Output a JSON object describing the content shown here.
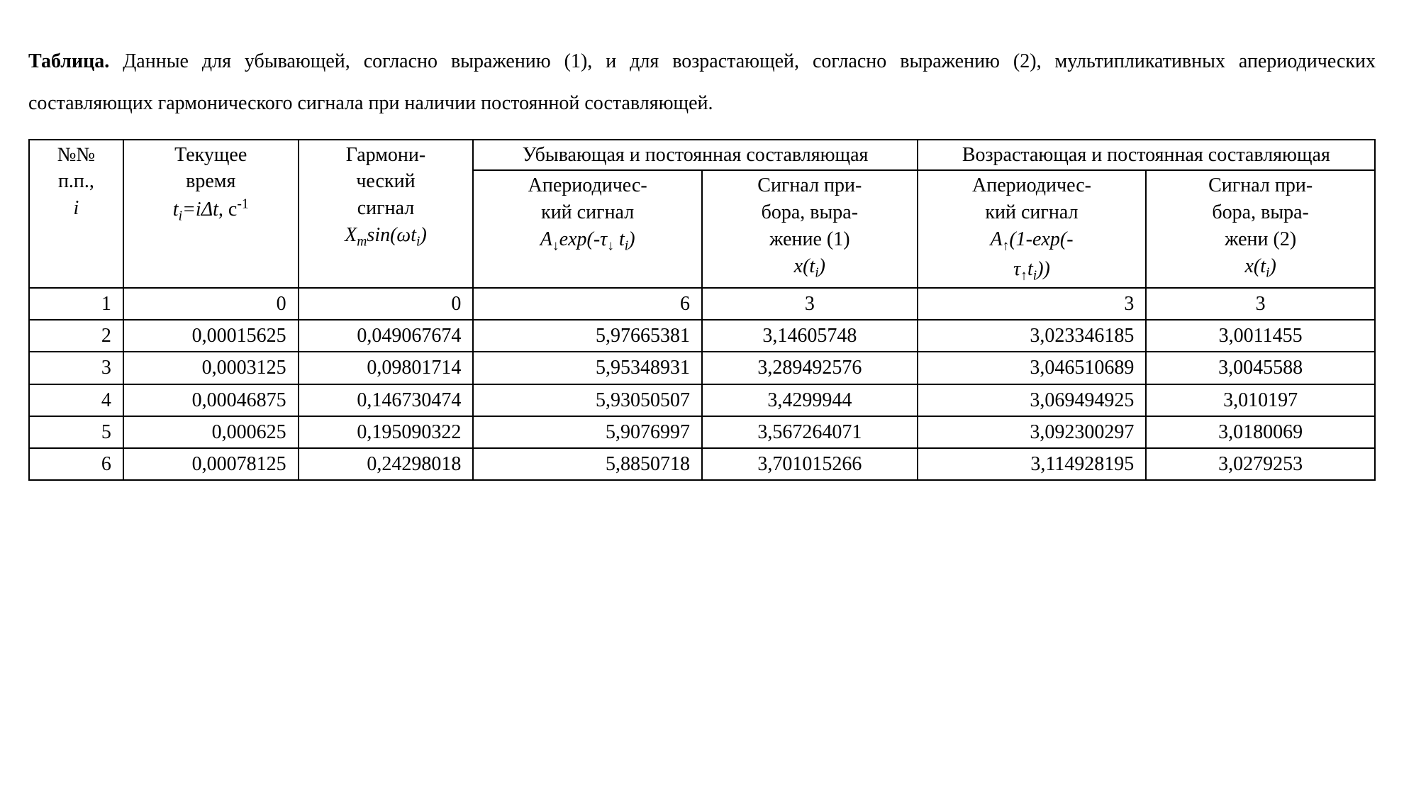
{
  "caption": {
    "label": "Таблица.",
    "text": " Данные для убывающей, согласно выражению (1), и для возрастающей, согласно выражению (2), мультипликативных апериодических составляющих гармонического сигнала при наличии постоянной составляющей."
  },
  "table": {
    "header": {
      "col1_l1": "№№",
      "col1_l2": "п.п.,",
      "col2_l1": "Текущее",
      "col2_l2": "время",
      "col3_l1": "Гармони-",
      "col3_l2": "ческий",
      "col3_l3": "сигнал",
      "group4": "Убывающая и постоянная составляющая",
      "group5": "Возрастающая и постоянная составляющая",
      "col4_l1": "Апериодичес-",
      "col4_l2": "кий сигнал",
      "col5_l1": "Сигнал при-",
      "col5_l2": "бора, выра-",
      "col5_l3": "жение (1)",
      "col6_l1": "Апериодичес-",
      "col6_l2": "кий сигнал",
      "col7_l1": "Сигнал при-",
      "col7_l2": "бора, выра-",
      "col7_l3": "жени (2)"
    },
    "rows": [
      {
        "i": "1",
        "t": "0",
        "h": "0",
        "a_dec": "6",
        "x_dec": "3",
        "a_inc": "3",
        "x_inc": "3"
      },
      {
        "i": "2",
        "t": "0,00015625",
        "h": "0,049067674",
        "a_dec": "5,97665381",
        "x_dec": "3,14605748",
        "a_inc": "3,023346185",
        "x_inc": "3,0011455"
      },
      {
        "i": "3",
        "t": "0,0003125",
        "h": "0,09801714",
        "a_dec": "5,95348931",
        "x_dec": "3,289492576",
        "a_inc": "3,046510689",
        "x_inc": "3,0045588"
      },
      {
        "i": "4",
        "t": "0,00046875",
        "h": "0,146730474",
        "a_dec": "5,93050507",
        "x_dec": "3,4299944",
        "a_inc": "3,069494925",
        "x_inc": "3,010197"
      },
      {
        "i": "5",
        "t": "0,000625",
        "h": "0,195090322",
        "a_dec": "5,9076997",
        "x_dec": "3,567264071",
        "a_inc": "3,092300297",
        "x_inc": "3,0180069"
      },
      {
        "i": "6",
        "t": "0,00078125",
        "h": "0,24298018",
        "a_dec": "5,8850718",
        "x_dec": "3,701015266",
        "a_inc": "3,114928195",
        "x_inc": "3,0279253"
      }
    ]
  }
}
